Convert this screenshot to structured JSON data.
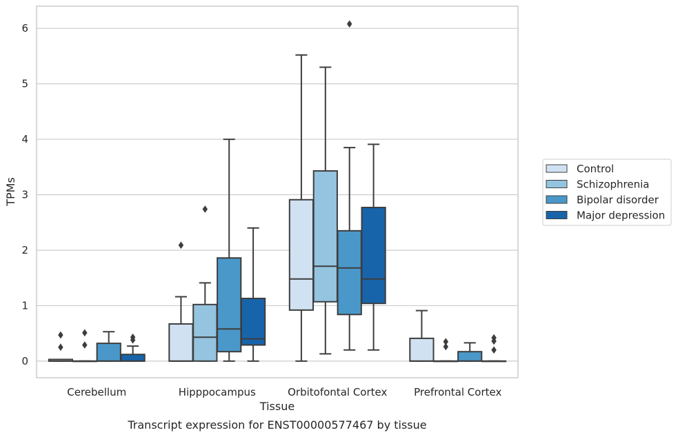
{
  "chart_data": {
    "type": "box",
    "title": "",
    "caption": "Transcript expression for ENST00000577467 by tissue",
    "xlabel": "Tissue",
    "ylabel": "TPMs",
    "ylim": [
      -0.3,
      6.4
    ],
    "yticks": [
      0,
      1,
      2,
      3,
      4,
      5,
      6
    ],
    "grid": "horizontal",
    "legend_position": "right",
    "categories": [
      "Cerebellum",
      "Hipppocampus",
      "Orbitofontal Cortex",
      "Prefrontal Cortex"
    ],
    "series": [
      {
        "name": "Control",
        "color": "#d0e1f2",
        "boxes": [
          {
            "whislo": 0,
            "q1": 0,
            "med": 0,
            "q3": 0.03,
            "whishi": 0.03,
            "fliers": [
              0.25,
              0.47
            ]
          },
          {
            "whislo": 0,
            "q1": 0,
            "med": 0,
            "q3": 0.67,
            "whishi": 1.16,
            "fliers": [
              2.09
            ]
          },
          {
            "whislo": 0,
            "q1": 0.92,
            "med": 1.48,
            "q3": 2.91,
            "whishi": 5.52,
            "fliers": []
          },
          {
            "whislo": 0,
            "q1": 0,
            "med": 0,
            "q3": 0.41,
            "whishi": 0.91,
            "fliers": []
          }
        ]
      },
      {
        "name": "Schizophrenia",
        "color": "#94c4df",
        "boxes": [
          {
            "whislo": 0,
            "q1": 0,
            "med": 0,
            "q3": 0,
            "whishi": 0,
            "fliers": [
              0.29,
              0.51
            ]
          },
          {
            "whislo": 0,
            "q1": 0,
            "med": 0.43,
            "q3": 1.02,
            "whishi": 1.41,
            "fliers": [
              2.74
            ]
          },
          {
            "whislo": 0.13,
            "q1": 1.07,
            "med": 1.71,
            "q3": 3.43,
            "whishi": 5.3,
            "fliers": []
          },
          {
            "whislo": 0,
            "q1": 0,
            "med": 0,
            "q3": 0,
            "whishi": 0,
            "fliers": [
              0.26,
              0.35
            ]
          }
        ]
      },
      {
        "name": "Bipolar disorder",
        "color": "#4a98c9",
        "boxes": [
          {
            "whislo": 0,
            "q1": 0,
            "med": 0,
            "q3": 0.32,
            "whishi": 0.53,
            "fliers": []
          },
          {
            "whislo": 0,
            "q1": 0.17,
            "med": 0.58,
            "q3": 1.86,
            "whishi": 4.0,
            "fliers": []
          },
          {
            "whislo": 0.2,
            "q1": 0.84,
            "med": 1.68,
            "q3": 2.35,
            "whishi": 3.85,
            "fliers": [
              6.08
            ]
          },
          {
            "whislo": 0,
            "q1": 0,
            "med": 0,
            "q3": 0.17,
            "whishi": 0.33,
            "fliers": []
          }
        ]
      },
      {
        "name": "Major depression",
        "color": "#1764ab",
        "boxes": [
          {
            "whislo": 0,
            "q1": 0,
            "med": 0,
            "q3": 0.12,
            "whishi": 0.27,
            "fliers": [
              0.38,
              0.43
            ]
          },
          {
            "whislo": 0,
            "q1": 0.29,
            "med": 0.4,
            "q3": 1.13,
            "whishi": 2.4,
            "fliers": []
          },
          {
            "whislo": 0.2,
            "q1": 1.04,
            "med": 1.48,
            "q3": 2.77,
            "whishi": 3.91,
            "fliers": []
          },
          {
            "whislo": 0,
            "q1": 0,
            "med": 0,
            "q3": 0,
            "whishi": 0,
            "fliers": [
              0.2,
              0.36,
              0.42
            ]
          }
        ]
      }
    ]
  }
}
